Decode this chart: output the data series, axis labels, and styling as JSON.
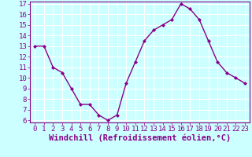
{
  "x": [
    0,
    1,
    2,
    3,
    4,
    5,
    6,
    7,
    8,
    9,
    10,
    11,
    12,
    13,
    14,
    15,
    16,
    17,
    18,
    19,
    20,
    21,
    22,
    23
  ],
  "y": [
    13,
    13,
    11,
    10.5,
    9,
    7.5,
    7.5,
    6.5,
    6,
    6.5,
    9.5,
    11.5,
    13.5,
    14.5,
    15,
    15.5,
    17,
    16.5,
    15.5,
    13.5,
    11.5,
    10.5,
    10,
    9.5
  ],
  "line_color": "#880088",
  "marker": "D",
  "marker_size": 2.0,
  "bg_color": "#ccffff",
  "grid_color": "#ffffff",
  "xlabel": "Windchill (Refroidissement éolien,°C)",
  "xlabel_color": "#880088",
  "ylim_min": 6,
  "ylim_max": 17,
  "xlim_min": 0,
  "xlim_max": 23,
  "yticks": [
    6,
    7,
    8,
    9,
    10,
    11,
    12,
    13,
    14,
    15,
    16,
    17
  ],
  "xticks": [
    0,
    1,
    2,
    3,
    4,
    5,
    6,
    7,
    8,
    9,
    10,
    11,
    12,
    13,
    14,
    15,
    16,
    17,
    18,
    19,
    20,
    21,
    22,
    23
  ],
  "tick_color": "#880088",
  "tick_fontsize": 6.5,
  "xlabel_fontsize": 7.5,
  "linewidth": 1.0,
  "spine_color": "#880088"
}
